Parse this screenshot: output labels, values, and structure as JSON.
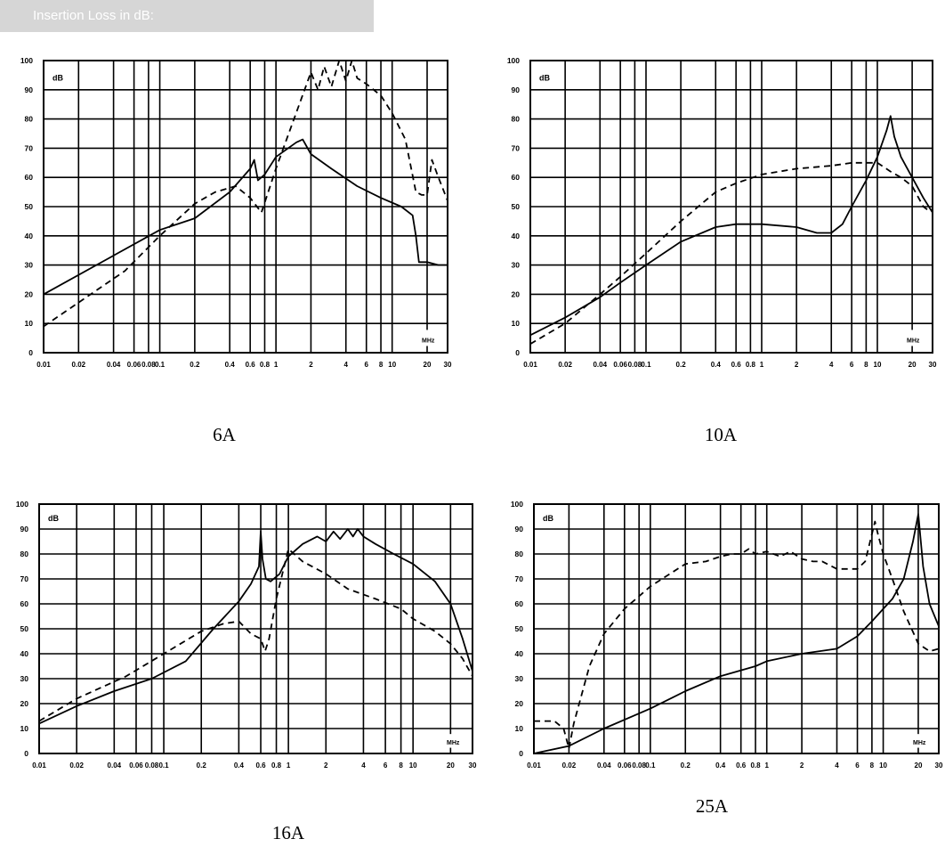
{
  "header": {
    "label": "Insertion Loss in dB:"
  },
  "chart_data": [
    {
      "type": "line",
      "caption": "6A",
      "unit_label": "dB",
      "x_unit_label": "MHz",
      "x_scale": "log",
      "xlim": [
        0.01,
        30
      ],
      "ylim": [
        0,
        100
      ],
      "x_ticks": [
        0.01,
        0.02,
        0.04,
        0.06,
        0.08,
        0.1,
        0.2,
        0.4,
        0.6,
        0.8,
        1,
        2,
        4,
        6,
        8,
        10,
        20,
        30
      ],
      "x_tick_labels": [
        "0.01",
        "0.02",
        "0.04",
        "0.06",
        "0.08",
        "0.1",
        "0.2",
        "0.4",
        "0.6",
        "0.8",
        "1",
        "2",
        "4",
        "6",
        "8",
        "10",
        "20",
        "30"
      ],
      "y_ticks": [
        0,
        10,
        20,
        30,
        40,
        50,
        60,
        70,
        80,
        90,
        100
      ],
      "grid": true,
      "series": [
        {
          "style": "solid",
          "x": [
            0.01,
            0.1,
            0.2,
            0.4,
            0.6,
            0.65,
            0.7,
            0.8,
            1.0,
            1.5,
            1.7,
            2.0,
            3,
            5,
            8,
            12,
            15,
            16,
            17,
            20,
            25,
            30
          ],
          "y": [
            20,
            42,
            46,
            55,
            63,
            66,
            59,
            61,
            67,
            72,
            73,
            68,
            63,
            57,
            53,
            50,
            47,
            40,
            31,
            31,
            30,
            30
          ]
        },
        {
          "style": "dashed",
          "x": [
            0.01,
            0.05,
            0.1,
            0.2,
            0.3,
            0.45,
            0.6,
            0.75,
            1.0,
            1.4,
            1.8,
            2.0,
            2.3,
            2.6,
            3.0,
            3.5,
            4.0,
            4.5,
            5.0,
            6,
            8,
            10,
            13,
            16,
            18,
            20,
            22,
            25,
            30
          ],
          "y": [
            9,
            28,
            40,
            51,
            55,
            57,
            53,
            48,
            63,
            79,
            91,
            96,
            90,
            98,
            91,
            100,
            93,
            100,
            94,
            92,
            88,
            82,
            73,
            55,
            54,
            54,
            66,
            60,
            52
          ]
        }
      ]
    },
    {
      "type": "line",
      "caption": "10A",
      "unit_label": "dB",
      "x_unit_label": "MHz",
      "x_scale": "log",
      "xlim": [
        0.01,
        30
      ],
      "ylim": [
        0,
        100
      ],
      "x_ticks": [
        0.01,
        0.02,
        0.04,
        0.06,
        0.08,
        0.1,
        0.2,
        0.4,
        0.6,
        0.8,
        1,
        2,
        4,
        6,
        8,
        10,
        20,
        30
      ],
      "x_tick_labels": [
        "0.01",
        "0.02",
        "0.04",
        "0.06",
        "0.08",
        "0.1",
        "0.2",
        "0.4",
        "0.6",
        "0.8",
        "1",
        "2",
        "4",
        "6",
        "8",
        "10",
        "20",
        "30"
      ],
      "y_ticks": [
        0,
        10,
        20,
        30,
        40,
        50,
        60,
        70,
        80,
        90,
        100
      ],
      "grid": true,
      "series": [
        {
          "style": "solid",
          "x": [
            0.01,
            0.02,
            0.04,
            0.06,
            0.1,
            0.2,
            0.4,
            0.6,
            0.8,
            1,
            2,
            3,
            4,
            5,
            6,
            8,
            10,
            12,
            13,
            14,
            16,
            20,
            25,
            30
          ],
          "y": [
            6,
            12,
            19,
            24,
            30,
            38,
            43,
            44,
            44,
            44,
            43,
            41,
            41,
            44,
            50,
            59,
            67,
            76,
            81,
            74,
            67,
            60,
            53,
            48
          ]
        },
        {
          "style": "dashed",
          "x": [
            0.01,
            0.02,
            0.04,
            0.06,
            0.1,
            0.2,
            0.4,
            0.6,
            1,
            2,
            4,
            6,
            10,
            13,
            16,
            20,
            25,
            27,
            30
          ],
          "y": [
            3,
            10,
            20,
            26,
            34,
            45,
            55,
            58,
            61,
            63,
            64,
            65,
            65,
            62,
            60,
            57,
            50,
            49,
            49
          ]
        }
      ]
    },
    {
      "type": "line",
      "caption": "16A",
      "unit_label": "dB",
      "x_unit_label": "MHz",
      "x_scale": "log",
      "xlim": [
        0.01,
        30
      ],
      "ylim": [
        0,
        100
      ],
      "x_ticks": [
        0.01,
        0.02,
        0.04,
        0.06,
        0.08,
        0.1,
        0.2,
        0.4,
        0.6,
        0.8,
        1,
        2,
        4,
        6,
        8,
        10,
        20,
        30
      ],
      "x_tick_labels": [
        "0.01",
        "0.02",
        "0.04",
        "0.06",
        "0.08",
        "0.1",
        "0.2",
        "0.4",
        "0.6",
        "0.8",
        "1",
        "2",
        "4",
        "6",
        "8",
        "10",
        "20",
        "30"
      ],
      "y_ticks": [
        0,
        10,
        20,
        30,
        40,
        50,
        60,
        70,
        80,
        90,
        100
      ],
      "grid": true,
      "series": [
        {
          "style": "solid",
          "x": [
            0.01,
            0.02,
            0.04,
            0.08,
            0.15,
            0.25,
            0.4,
            0.5,
            0.58,
            0.6,
            0.62,
            0.66,
            0.72,
            0.85,
            1.0,
            1.3,
            1.7,
            2.0,
            2.3,
            2.6,
            3.0,
            3.3,
            3.6,
            4.0,
            5,
            7,
            10,
            15,
            20,
            25,
            30
          ],
          "y": [
            12,
            19,
            25,
            30,
            37,
            50,
            61,
            68,
            75,
            89,
            78,
            70,
            69,
            72,
            79,
            84,
            87,
            85,
            89,
            86,
            90,
            87,
            90,
            87,
            84,
            80,
            76,
            69,
            60,
            46,
            33
          ]
        },
        {
          "style": "dashed",
          "x": [
            0.01,
            0.02,
            0.05,
            0.1,
            0.2,
            0.3,
            0.4,
            0.5,
            0.6,
            0.65,
            0.7,
            0.8,
            1.0,
            1.3,
            2,
            3,
            5,
            8,
            10,
            15,
            20,
            25,
            30
          ],
          "y": [
            13,
            22,
            31,
            40,
            49,
            52,
            53,
            48,
            46,
            41,
            46,
            62,
            82,
            77,
            72,
            66,
            62,
            58,
            54,
            49,
            44,
            38,
            31
          ]
        }
      ]
    },
    {
      "type": "line",
      "caption": "25A",
      "unit_label": "dB",
      "x_unit_label": "MHz",
      "x_scale": "log",
      "xlim": [
        0.01,
        30
      ],
      "ylim": [
        0,
        100
      ],
      "x_ticks": [
        0.01,
        0.02,
        0.04,
        0.06,
        0.08,
        0.1,
        0.2,
        0.4,
        0.6,
        0.8,
        1,
        2,
        4,
        6,
        8,
        10,
        20,
        30
      ],
      "x_tick_labels": [
        "0.01",
        "0.02",
        "0.04",
        "0.06",
        "0.08",
        "0.1",
        "0.2",
        "0.4",
        "0.6",
        "0.8",
        "1",
        "2",
        "4",
        "6",
        "8",
        "10",
        "20",
        "30"
      ],
      "y_ticks": [
        0,
        10,
        20,
        30,
        40,
        50,
        60,
        70,
        80,
        90,
        100
      ],
      "grid": true,
      "series": [
        {
          "style": "solid",
          "x": [
            0.01,
            0.02,
            0.04,
            0.1,
            0.2,
            0.4,
            0.8,
            1,
            2,
            4,
            6,
            8,
            10,
            12,
            15,
            18,
            20,
            22,
            25,
            30
          ],
          "y": [
            0,
            3,
            10,
            18,
            25,
            31,
            35,
            37,
            40,
            42,
            47,
            53,
            58,
            62,
            70,
            85,
            96,
            75,
            60,
            51
          ]
        },
        {
          "style": "dashed",
          "x": [
            0.01,
            0.015,
            0.018,
            0.02,
            0.022,
            0.03,
            0.04,
            0.06,
            0.1,
            0.2,
            0.3,
            0.4,
            0.5,
            0.6,
            0.7,
            0.8,
            1.0,
            1.3,
            1.6,
            2.0,
            2.5,
            3,
            4,
            5,
            6,
            7,
            8,
            8.5,
            9,
            10,
            12,
            15,
            20,
            25,
            30
          ],
          "y": [
            13,
            13,
            10,
            2,
            12,
            35,
            48,
            58,
            67,
            76,
            77,
            79,
            80,
            80,
            82,
            80,
            81,
            79,
            81,
            78,
            77,
            77,
            74,
            74,
            74,
            77,
            88,
            93,
            88,
            80,
            70,
            57,
            44,
            41,
            42
          ]
        }
      ]
    }
  ]
}
